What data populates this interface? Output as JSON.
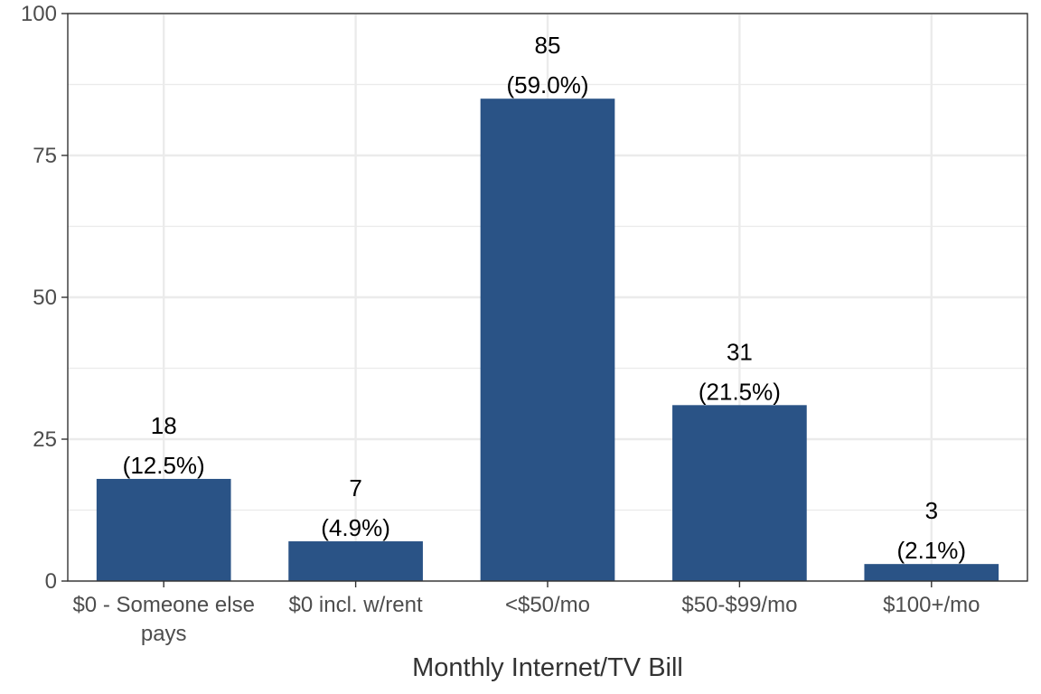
{
  "chart_data": {
    "type": "bar",
    "categories": [
      [
        "$0 - Someone else",
        "pays"
      ],
      [
        "$0 incl. w/rent"
      ],
      [
        "<$50/mo"
      ],
      [
        "$50-$99/mo"
      ],
      [
        "$100+/mo"
      ]
    ],
    "values": [
      18,
      7,
      85,
      31,
      3
    ],
    "labels": [
      [
        "18",
        "(12.5%)"
      ],
      [
        "7",
        "(4.9%)"
      ],
      [
        "85",
        "(59.0%)"
      ],
      [
        "31",
        "(21.5%)"
      ],
      [
        "3",
        "(2.1%)"
      ]
    ],
    "xlabel": "Monthly Internet/TV Bill",
    "ylabel": "",
    "ylim": [
      0,
      100
    ],
    "yticks": [
      0,
      25,
      50,
      75,
      100
    ],
    "grid": true,
    "bar_color": "#2a5386"
  }
}
